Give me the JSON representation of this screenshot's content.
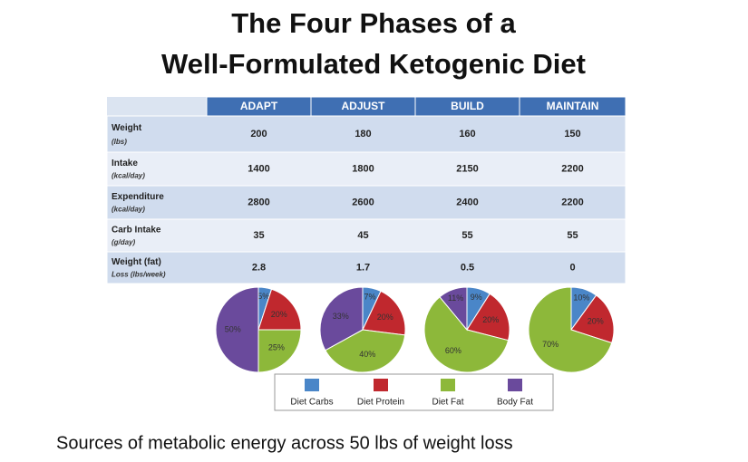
{
  "title": [
    "The Four Phases of a",
    "Well-Formulated Ketogenic Diet"
  ],
  "table": {
    "header": [
      "ADAPT",
      "ADJUST",
      "BUILD",
      "MAINTAIN"
    ],
    "rows": [
      {
        "label": "Weight",
        "unit": "(lbs)",
        "values": [
          200,
          180,
          160,
          150
        ]
      },
      {
        "label": "Intake",
        "unit": "(kcal/day)",
        "values": [
          1400,
          1800,
          2150,
          2200
        ]
      },
      {
        "label": "Expenditure",
        "unit": "(kcal/day)",
        "values": [
          2800,
          2600,
          2400,
          2200
        ]
      },
      {
        "label": "Carb Intake",
        "unit": "(g/day)",
        "values": [
          35,
          45,
          55,
          55
        ]
      },
      {
        "label": "Weight (fat)",
        "unit": "Loss (lbs/week)",
        "values": [
          2.8,
          1.7,
          0.5,
          0
        ]
      }
    ]
  },
  "chart_data": [
    {
      "type": "pie",
      "categories": [
        "Diet Carbs",
        "Diet Protein",
        "Diet Fat",
        "Body Fat"
      ],
      "colors": [
        "#4a86c8",
        "#c0282e",
        "#8db83a",
        "#6a4a9c"
      ],
      "values": [
        5,
        20,
        25,
        50
      ],
      "value_labels": [
        "5%",
        "20%",
        "25%",
        "50%"
      ]
    },
    {
      "type": "pie",
      "categories": [
        "Diet Carbs",
        "Diet Protein",
        "Diet Fat",
        "Body Fat"
      ],
      "colors": [
        "#4a86c8",
        "#c0282e",
        "#8db83a",
        "#6a4a9c"
      ],
      "values": [
        7,
        20,
        40,
        33
      ],
      "value_labels": [
        "7%",
        "20%",
        "40%",
        "33%"
      ]
    },
    {
      "type": "pie",
      "categories": [
        "Diet Carbs",
        "Diet Protein",
        "Diet Fat",
        "Body Fat"
      ],
      "colors": [
        "#4a86c8",
        "#c0282e",
        "#8db83a",
        "#6a4a9c"
      ],
      "values": [
        9,
        20,
        60,
        11
      ],
      "value_labels": [
        "9%",
        "20%",
        "60%",
        "11%"
      ]
    },
    {
      "type": "pie",
      "categories": [
        "Diet Carbs",
        "Diet Protein",
        "Diet Fat"
      ],
      "colors": [
        "#4a86c8",
        "#c0282e",
        "#8db83a"
      ],
      "values": [
        10,
        20,
        70
      ],
      "value_labels": [
        "10%",
        "20%",
        "70%"
      ]
    }
  ],
  "caption": "Sources of metabolic energy across 50 lbs of weight loss"
}
